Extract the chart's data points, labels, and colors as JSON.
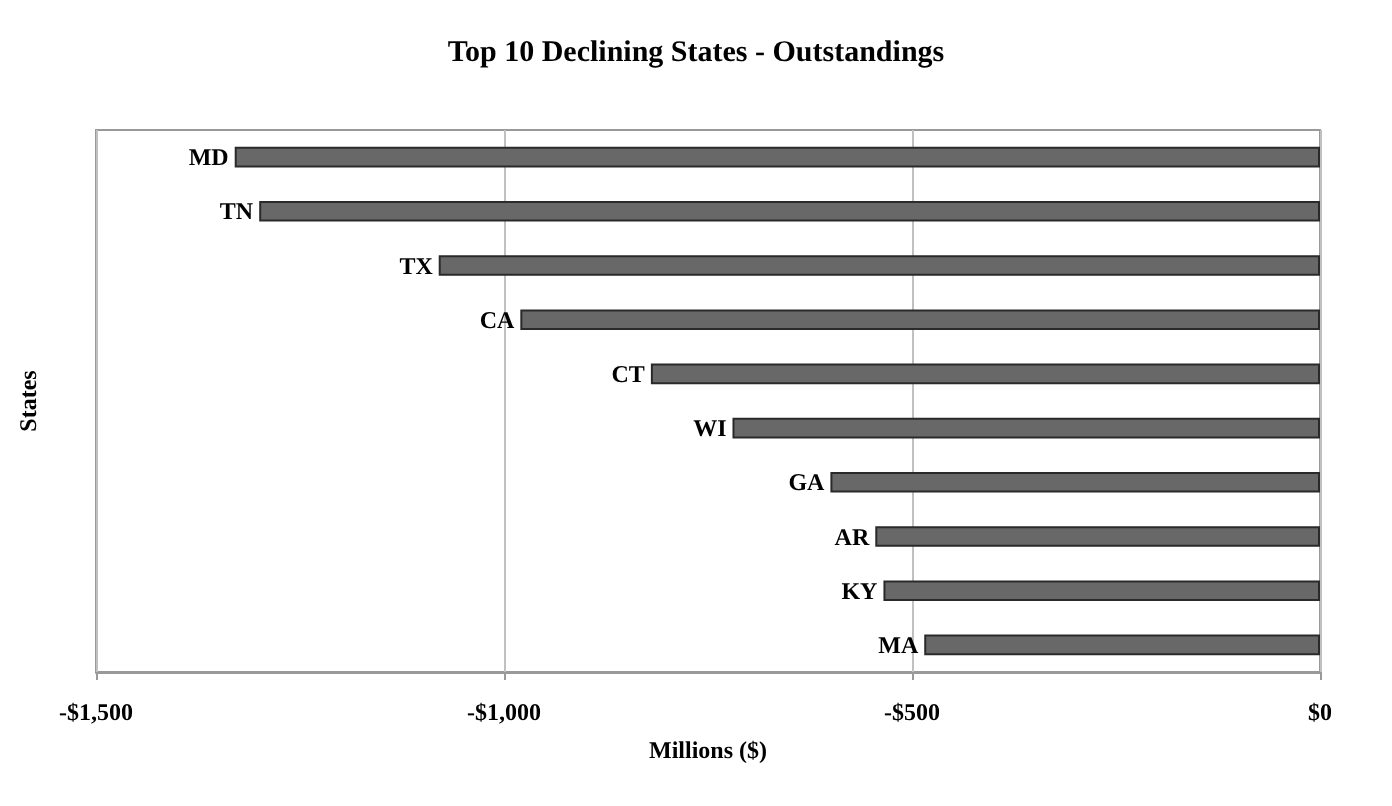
{
  "chart_data": {
    "type": "bar",
    "orientation": "horizontal",
    "title": "Top 10 Declining States - Outstandings",
    "xlabel": "Millions ($)",
    "ylabel": "States",
    "categories": [
      "MD",
      "TN",
      "TX",
      "CA",
      "CT",
      "WI",
      "GA",
      "AR",
      "KY",
      "MA"
    ],
    "values": [
      -1330,
      -1300,
      -1080,
      -980,
      -820,
      -720,
      -600,
      -545,
      -535,
      -485
    ],
    "color": "#686868",
    "xlim": [
      -1500,
      0
    ],
    "xticks": [
      {
        "value": -1500,
        "label": "-$1,500"
      },
      {
        "value": -1000,
        "label": "-$1,000"
      },
      {
        "value": -500,
        "label": "-$500"
      },
      {
        "value": 0,
        "label": "$0"
      }
    ],
    "grid": "x"
  }
}
